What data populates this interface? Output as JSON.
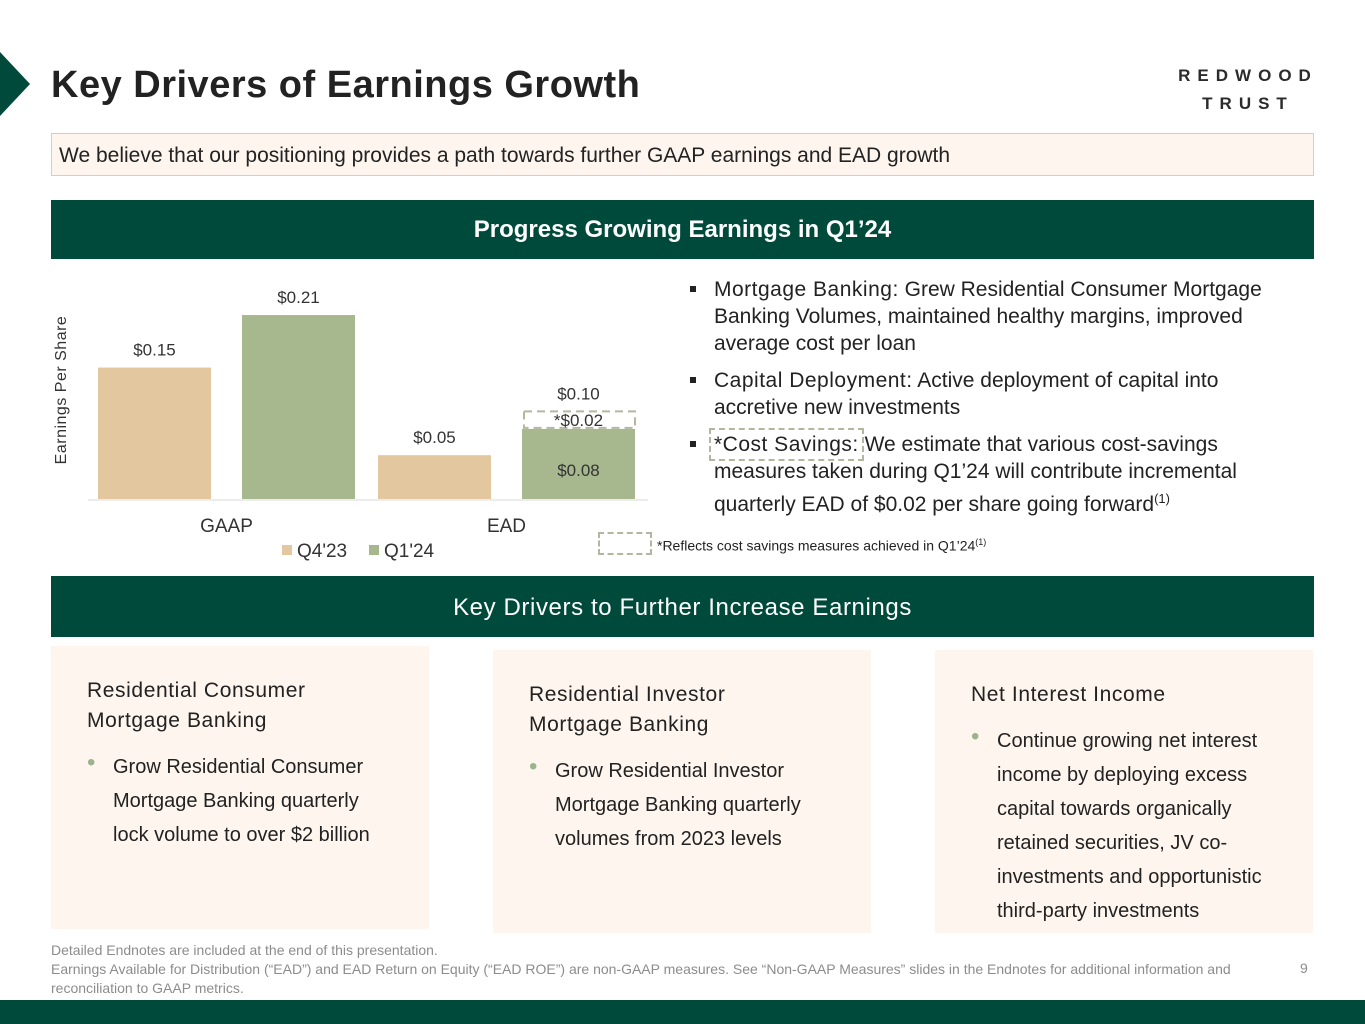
{
  "header": {
    "title": "Key Drivers of Earnings Growth",
    "logo_line1": "REDWOOD",
    "logo_line2": "TRUST"
  },
  "subtitle": "We believe that our positioning provides a path towards further GAAP earnings and EAD growth",
  "band1": "Progress Growing Earnings in Q1’24",
  "band2": "Key Drivers to Further Increase Earnings",
  "chart_data": {
    "type": "bar",
    "title": "",
    "xlabel": "",
    "ylabel": "Earnings Per Share",
    "ylim": [
      0,
      0.25
    ],
    "grid": false,
    "legend": "bottom",
    "categories": [
      "GAAP",
      "EAD"
    ],
    "series": [
      {
        "name": "Q4'23",
        "color": "#e2c79f",
        "values": [
          0.15,
          0.05
        ],
        "labels": [
          "$0.15",
          "$0.05"
        ]
      },
      {
        "name": "Q1'24",
        "color": "#a8b88e",
        "values": [
          0.21,
          0.08
        ],
        "labels": [
          "$0.21",
          "$0.08"
        ]
      }
    ],
    "annotations": {
      "ead_q124_total": 0.1,
      "ead_q124_total_label": "$0.10",
      "ead_q124_cost_savings": 0.02,
      "ead_q124_cost_savings_label": "*$0.02"
    }
  },
  "bullets": [
    {
      "lead": "Mortgage Banking:",
      "text": " Grew Residential Consumer Mortgage Banking Volumes, maintained healthy margins, improved average cost per loan"
    },
    {
      "lead": "Capital Deployment:",
      "text": " Active deployment of capital into accretive new investments"
    },
    {
      "lead": "*Cost Savings:",
      "text": " We estimate that various cost-savings measures taken during Q1’24 will contribute incremental quarterly EAD of $0.02 per share going forward",
      "sup": "(1)"
    }
  ],
  "footnote": {
    "text": "*Reflects cost savings measures achieved in Q1’24",
    "sup": "(1)"
  },
  "cards": [
    {
      "title_line1": "Residential Consumer",
      "title_line2": "Mortgage Banking",
      "bullet": "Grow Residential Consumer Mortgage Banking quarterly lock volume to over $2 billion"
    },
    {
      "title_line1": "Residential Investor",
      "title_line2": "Mortgage Banking",
      "bullet": "Grow Residential Investor Mortgage Banking quarterly volumes from 2023 levels"
    },
    {
      "title_line1": "Net Interest Income",
      "title_line2": "",
      "bullet": "Continue growing net interest income by deploying excess capital towards organically retained securities, JV co-investments and opportunistic third-party investments"
    }
  ],
  "footer": {
    "line1": "Detailed Endnotes are included at the end of this presentation.",
    "line2": "Earnings Available for Distribution (“EAD”) and EAD Return on Equity (“EAD ROE”) are non-GAAP measures. See “Non-GAAP Measures” slides in the Endnotes for additional information and reconciliation to GAAP metrics.",
    "page_number": "9"
  },
  "colors": {
    "brand_green": "#004a3c",
    "accent_fill": "#fef5ee",
    "q4_bar": "#e2c79f",
    "q1_bar": "#a8b88e"
  }
}
